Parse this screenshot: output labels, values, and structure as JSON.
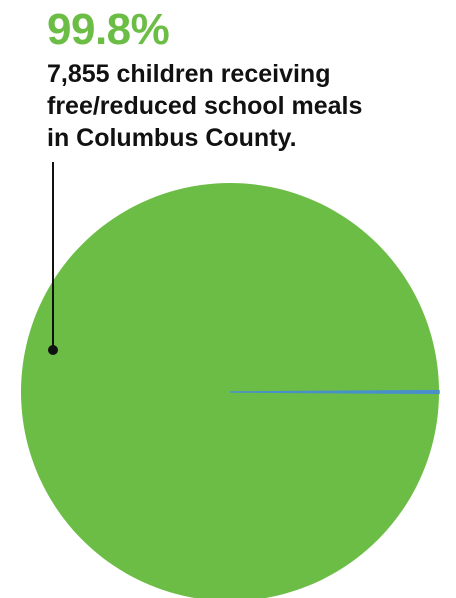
{
  "headline": {
    "value": "99.8%",
    "color": "#6cbd45"
  },
  "caption": {
    "lines": [
      "7,855 children receiving",
      "free/reduced school meals",
      "in Columbus County."
    ]
  },
  "chart_data": {
    "type": "pie",
    "title": "",
    "slices": [
      {
        "value": 99.8,
        "color": "#6cbd45"
      },
      {
        "value": 0.2,
        "color": "#4a90c8"
      }
    ],
    "total": 100
  }
}
